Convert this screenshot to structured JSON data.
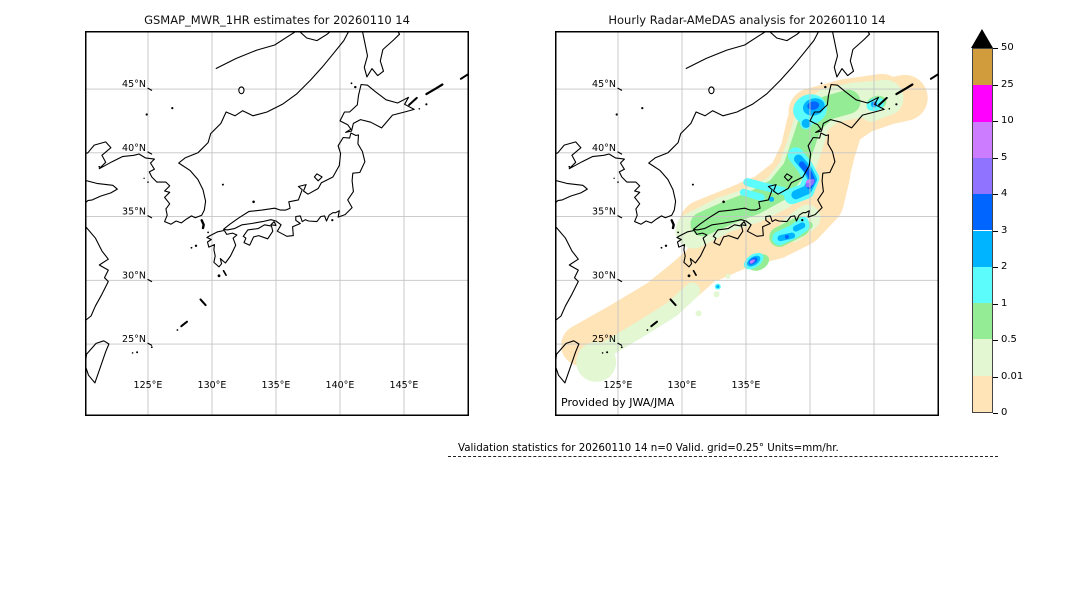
{
  "figure": {
    "panels": [
      {
        "title": "GSMAP_MWR_1HR estimates for 20260110 14",
        "lat_tick_labels": [
          "45°N",
          "40°N",
          "35°N",
          "30°N",
          "25°N"
        ],
        "lon_tick_labels": [
          "125°E",
          "130°E",
          "135°E",
          "140°E",
          "145°E"
        ]
      },
      {
        "title": "Hourly Radar-AMeDAS analysis for 20260110 14",
        "lat_tick_labels": [
          "45°N",
          "40°N",
          "35°N",
          "30°N",
          "25°N"
        ],
        "lon_tick_labels": [
          "125°E",
          "130°E",
          "135°E"
        ],
        "annotation": "Provided by JWA/JMA"
      }
    ],
    "caption": "Validation statistics for 20260110 14  n=0 Valid. grid=0.25° Units=mm/hr."
  },
  "chart_data": {
    "type": "heatmap",
    "subtype": "filled-contour precipitation maps (2 panels, same geographic domain)",
    "datetime": "20260110 14",
    "units": "mm/hr",
    "grid_resolution": "0.25°",
    "n_valid": 0,
    "domain": {
      "lon_range": [
        120.08,
        150.08
      ],
      "lat_range": [
        19.4,
        49.55
      ]
    },
    "lon_gridlines": [
      125,
      130,
      135,
      140,
      145
    ],
    "lat_gridlines": [
      45,
      40,
      35,
      30,
      25
    ],
    "colorbar": {
      "tick_labels_top_to_bottom": [
        "50",
        "25",
        "10",
        "5",
        "4",
        "3",
        "2",
        "1",
        "0.5",
        "0.01",
        "0"
      ],
      "bins": [
        {
          "min": 0,
          "max": 0.01,
          "color": "#ffe4b8"
        },
        {
          "min": 0.01,
          "max": 0.5,
          "color": "#e2f7d2"
        },
        {
          "min": 0.5,
          "max": 1,
          "color": "#94ed94"
        },
        {
          "min": 1,
          "max": 2,
          "color": "#5cfcfc"
        },
        {
          "min": 2,
          "max": 3,
          "color": "#00b4ff"
        },
        {
          "min": 3,
          "max": 4,
          "color": "#0064ff"
        },
        {
          "min": 4,
          "max": 5,
          "color": "#9073ff"
        },
        {
          "min": 5,
          "max": 10,
          "color": "#cc7dff"
        },
        {
          "min": 10,
          "max": 25,
          "color": "#ff00ff"
        },
        {
          "min": 25,
          "max": 50,
          "color": "#d09c3c"
        }
      ],
      "overflow_color": "#000000"
    },
    "panels": [
      {
        "name": "GSMAP_MWR_1HR",
        "features": [],
        "note": "no precipitation shown (n=0, empty basemap)"
      },
      {
        "name": "Radar-AMeDAS",
        "features": [
          {
            "bin": 0,
            "shape": "stroke",
            "w": 42,
            "pts": [
              [
                122.2,
                24.9
              ],
              [
                125.2,
                26.6
              ],
              [
                128.2,
                28.4
              ],
              [
                130.3,
                30.1
              ],
              [
                132.3,
                31.9
              ]
            ]
          },
          {
            "bin": 0,
            "shape": "stroke",
            "w": 50,
            "pts": [
              [
                132.3,
                31.9
              ],
              [
                134.8,
                33.0
              ],
              [
                137.2,
                33.6
              ],
              [
                139.2,
                34.6
              ],
              [
                140.7,
                36.2
              ],
              [
                141.2,
                38.3
              ]
            ]
          },
          {
            "bin": 0,
            "shape": "stroke",
            "w": 46,
            "pts": [
              [
                141.3,
                38.3
              ],
              [
                141.8,
                40.3
              ],
              [
                142.4,
                42.2
              ],
              [
                144.0,
                43.3
              ],
              [
                146.0,
                44.0
              ],
              [
                147.4,
                44.3
              ]
            ]
          },
          {
            "bin": 0,
            "shape": "stroke",
            "w": 48,
            "pts": [
              [
                140.2,
                43.2
              ],
              [
                142.8,
                43.9
              ],
              [
                145.6,
                44.3
              ]
            ]
          },
          {
            "bin": 0,
            "shape": "stroke",
            "w": 52,
            "pts": [
              [
                131.8,
                34.3
              ],
              [
                134.5,
                35.4
              ],
              [
                136.8,
                36.4
              ],
              [
                138.7,
                37.9
              ],
              [
                139.7,
                40.0
              ],
              [
                140.2,
                42.2
              ]
            ]
          },
          {
            "bin": 1,
            "shape": "circle",
            "c": [
              123.3,
              23.6
            ],
            "r": 20
          },
          {
            "bin": 1,
            "shape": "stroke",
            "w": 16,
            "pts": [
              [
                123.8,
                24.4
              ],
              [
                126.8,
                26.2
              ],
              [
                129.2,
                27.7
              ],
              [
                130.8,
                29.2
              ]
            ]
          },
          {
            "bin": 1,
            "shape": "stroke",
            "w": 36,
            "pts": [
              [
                130.9,
                33.9
              ],
              [
                133.2,
                35.1
              ],
              [
                135.6,
                35.9
              ],
              [
                137.6,
                36.9
              ],
              [
                138.9,
                38.6
              ],
              [
                139.6,
                40.6
              ],
              [
                140.2,
                42.6
              ],
              [
                141.5,
                43.7
              ],
              [
                143.5,
                44.1
              ],
              [
                145.9,
                44.3
              ]
            ]
          },
          {
            "bin": 1,
            "shape": "stroke",
            "w": 26,
            "pts": [
              [
                138.6,
                34.0
              ],
              [
                139.8,
                34.9
              ]
            ]
          },
          {
            "bin": 1,
            "shape": "stroke",
            "w": 22,
            "pts": [
              [
                144.8,
                43.3
              ],
              [
                146.3,
                43.9
              ]
            ]
          },
          {
            "bin": 1,
            "shape": "circle",
            "c": [
              132.7,
              28.9
            ],
            "r": 3
          },
          {
            "bin": 1,
            "shape": "circle",
            "c": [
              131.3,
              27.4
            ],
            "r": 3
          },
          {
            "bin": 1,
            "shape": "circle",
            "c": [
              133.6,
              30.3
            ],
            "r": 2.5
          },
          {
            "bin": 2,
            "shape": "stroke",
            "w": 24,
            "pts": [
              [
                131.6,
                34.4
              ],
              [
                133.6,
                35.3
              ],
              [
                135.7,
                36.1
              ],
              [
                137.5,
                37.1
              ],
              [
                138.8,
                38.7
              ],
              [
                139.4,
                40.5
              ],
              [
                140.0,
                42.3
              ],
              [
                141.3,
                43.5
              ],
              [
                143.0,
                44.0
              ]
            ]
          },
          {
            "bin": 2,
            "shape": "ellipse",
            "c": [
              145.2,
              43.9
            ],
            "rx": 10,
            "ry": 7,
            "rot": -15
          },
          {
            "bin": 2,
            "shape": "circle",
            "c": [
              139.9,
              34.3
            ],
            "r": 4
          },
          {
            "bin": 2,
            "shape": "stroke",
            "w": 20,
            "pts": [
              [
                137.6,
                33.4
              ],
              [
                139.2,
                34.2
              ]
            ]
          },
          {
            "bin": 2,
            "shape": "ellipse",
            "c": [
              136.0,
              31.4
            ],
            "rx": 11,
            "ry": 7.5,
            "rot": -28
          },
          {
            "bin": 3,
            "shape": "stroke",
            "w": 16,
            "pts": [
              [
                138.9,
                39.8
              ],
              [
                139.6,
                38.9
              ],
              [
                140.1,
                38.0
              ],
              [
                139.7,
                37.0
              ],
              [
                138.6,
                36.6
              ]
            ]
          },
          {
            "bin": 3,
            "shape": "stroke",
            "w": 8,
            "pts": [
              [
                135.1,
                37.7
              ],
              [
                136.6,
                37.3
              ],
              [
                137.9,
                37.0
              ]
            ]
          },
          {
            "bin": 3,
            "shape": "stroke",
            "w": 7,
            "pts": [
              [
                134.8,
                36.9
              ],
              [
                136.2,
                36.5
              ]
            ]
          },
          {
            "bin": 3,
            "shape": "ellipse",
            "c": [
              140.0,
              43.4
            ],
            "rx": 17,
            "ry": 15,
            "rot": -15
          },
          {
            "bin": 3,
            "shape": "circle",
            "c": [
              139.7,
              42.3
            ],
            "r": 6
          },
          {
            "bin": 3,
            "shape": "ellipse",
            "c": [
              145.1,
              43.8
            ],
            "rx": 9,
            "ry": 6.5,
            "rot": -20
          },
          {
            "bin": 3,
            "shape": "stroke",
            "w": 14,
            "pts": [
              [
                137.6,
                33.3
              ],
              [
                138.7,
                33.8
              ],
              [
                139.4,
                34.3
              ]
            ]
          },
          {
            "bin": 3,
            "shape": "circle",
            "c": [
              139.5,
              34.6
            ],
            "r": 5
          },
          {
            "bin": 3,
            "shape": "ellipse",
            "c": [
              135.6,
              31.5
            ],
            "rx": 11,
            "ry": 6.5,
            "rot": -34
          },
          {
            "bin": 3,
            "shape": "circle",
            "c": [
              132.8,
              29.5
            ],
            "r": 3
          },
          {
            "bin": 4,
            "shape": "stroke",
            "w": 9,
            "pts": [
              [
                139.1,
                39.5
              ],
              [
                139.8,
                38.7
              ],
              [
                140.2,
                37.9
              ],
              [
                139.8,
                37.1
              ],
              [
                138.9,
                36.7
              ]
            ]
          },
          {
            "bin": 4,
            "shape": "ellipse",
            "c": [
              140.3,
              43.6
            ],
            "rx": 11,
            "ry": 8.5,
            "rot": -15
          },
          {
            "bin": 4,
            "shape": "circle",
            "c": [
              139.7,
              42.3
            ],
            "r": 4.5
          },
          {
            "bin": 4,
            "shape": "stroke",
            "w": 6,
            "pts": [
              [
                137.7,
                33.3
              ],
              [
                138.6,
                33.5
              ]
            ]
          },
          {
            "bin": 4,
            "shape": "stroke",
            "w": 6,
            "pts": [
              [
                138.9,
                34.05
              ],
              [
                139.4,
                34.3
              ]
            ]
          },
          {
            "bin": 4,
            "shape": "ellipse",
            "c": [
              135.6,
              31.5
            ],
            "rx": 7.5,
            "ry": 4.2,
            "rot": -34
          },
          {
            "bin": 4,
            "shape": "circle",
            "c": [
              145.0,
              43.8
            ],
            "r": 3.2
          },
          {
            "bin": 4,
            "shape": "circle",
            "c": [
              132.8,
              29.5
            ],
            "r": 1.6
          },
          {
            "bin": 4,
            "shape": "circle",
            "c": [
              137.0,
              36.35
            ],
            "r": 2.5
          },
          {
            "bin": 5,
            "shape": "stroke",
            "w": 5.5,
            "pts": [
              [
                139.35,
                39.1
              ],
              [
                139.95,
                38.4
              ],
              [
                140.2,
                37.8
              ],
              [
                139.95,
                37.35
              ]
            ]
          },
          {
            "bin": 5,
            "shape": "ellipse",
            "c": [
              140.25,
              43.7
            ],
            "rx": 6,
            "ry": 4.2,
            "rot": -10
          },
          {
            "bin": 5,
            "shape": "ellipse",
            "c": [
              135.55,
              31.5
            ],
            "rx": 5,
            "ry": 2.8,
            "rot": -34
          },
          {
            "bin": 5,
            "shape": "circle",
            "c": [
              138.2,
              33.4
            ],
            "r": 2
          },
          {
            "bin": 5,
            "shape": "circle",
            "c": [
              145.05,
              43.85
            ],
            "r": 2
          },
          {
            "bin": 6,
            "shape": "ellipse",
            "c": [
              140.0,
              37.62
            ],
            "rx": 5.5,
            "ry": 3,
            "rot": -40
          },
          {
            "bin": 6,
            "shape": "ellipse",
            "c": [
              135.5,
              31.48
            ],
            "rx": 3.2,
            "ry": 1.8,
            "rot": -34
          },
          {
            "bin": 7,
            "shape": "ellipse",
            "c": [
              139.85,
              37.75
            ],
            "rx": 2.6,
            "ry": 1.5,
            "rot": -40
          },
          {
            "bin": 7,
            "shape": "ellipse",
            "c": [
              135.45,
              31.45
            ],
            "rx": 2,
            "ry": 1.2,
            "rot": -34
          }
        ]
      }
    ]
  }
}
